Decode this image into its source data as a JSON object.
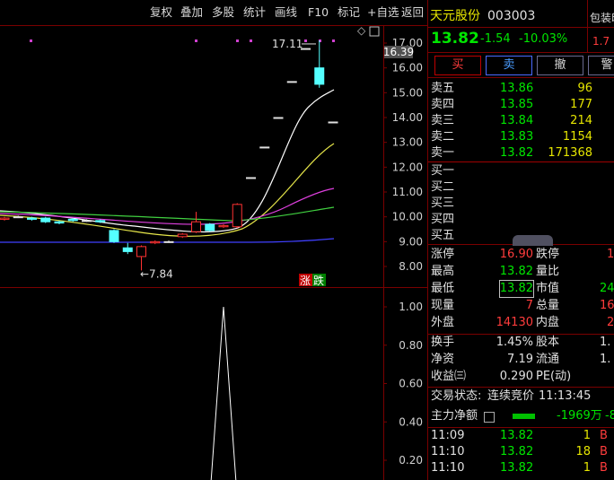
{
  "toolbar": [
    "复权",
    "叠加",
    "多股",
    "统计",
    "画线",
    "F10",
    "标记",
    "+自选",
    "返回"
  ],
  "chart": {
    "price_ticks": [
      {
        "value": 17,
        "label": "17.00"
      },
      {
        "value": 16,
        "label": "16.00"
      },
      {
        "value": 15,
        "label": "15.00"
      },
      {
        "value": 14,
        "label": "14.00"
      },
      {
        "value": 13,
        "label": "13.00"
      },
      {
        "value": 12,
        "label": "12.00"
      },
      {
        "value": 11,
        "label": "11.00"
      },
      {
        "value": 10,
        "label": "10.00"
      },
      {
        "value": 9,
        "label": "9.00"
      },
      {
        "value": 8,
        "label": "8.00"
      }
    ],
    "candles": [
      {
        "open": 9.9,
        "close": 9.95,
        "high": 10,
        "low": 9.85
      },
      {
        "open": 10,
        "close": 10,
        "high": 10.05,
        "low": 9.95
      },
      {
        "open": 9.95,
        "close": 9.9,
        "high": 10,
        "low": 9.85
      },
      {
        "open": 9.95,
        "close": 9.8,
        "high": 10,
        "low": 9.75
      },
      {
        "open": 9.8,
        "close": 9.75,
        "high": 9.85,
        "low": 9.7
      },
      {
        "open": 9.9,
        "close": 9.85,
        "high": 9.95,
        "low": 9.8
      },
      {
        "open": 9.85,
        "close": 9.85,
        "high": 9.9,
        "low": 9.8
      },
      {
        "open": 9.85,
        "close": 9.8,
        "high": 9.9,
        "low": 9.75
      },
      {
        "open": 9.45,
        "close": 9,
        "high": 9.5,
        "low": 8.95
      },
      {
        "open": 8.75,
        "close": 8.6,
        "high": 8.95,
        "low": 8.5
      },
      {
        "open": 8.4,
        "close": 8.8,
        "high": 8.85,
        "low": 7.84
      },
      {
        "open": 8.95,
        "close": 9,
        "high": 9.05,
        "low": 8.9
      },
      {
        "open": 9,
        "close": 9,
        "high": 9.05,
        "low": 8.95
      },
      {
        "open": 9.2,
        "close": 9.3,
        "high": 9.35,
        "low": 9.15
      },
      {
        "open": 9.4,
        "close": 9.8,
        "high": 10.2,
        "low": 9.35
      },
      {
        "open": 9.7,
        "close": 9.45,
        "high": 9.75,
        "low": 9.4
      },
      {
        "open": 9.6,
        "close": 9.65,
        "high": 9.7,
        "low": 9.55
      },
      {
        "open": 9.6,
        "close": 10.5,
        "high": 10.55,
        "low": 9.55
      },
      {
        "open": 11.58,
        "close": 11.58,
        "high": 11.58,
        "low": 11.58
      },
      {
        "open": 12.81,
        "close": 12.81,
        "high": 12.81,
        "low": 12.81
      },
      {
        "open": 14,
        "close": 14,
        "high": 14,
        "low": 14
      },
      {
        "open": 15.45,
        "close": 15.45,
        "high": 15.45,
        "low": 15.45
      },
      {
        "open": 16.78,
        "close": 16.78,
        "high": 16.78,
        "low": 16.78
      },
      {
        "open": 16,
        "close": 15.34,
        "high": 17.11,
        "low": 15.2
      },
      {
        "open": 13.82,
        "close": 13.82,
        "high": 13.82,
        "low": 13.82
      }
    ],
    "high_label": "17.11",
    "low_label": "←7.84",
    "cursor_price": "16.39",
    "updown": [
      "涨",
      "跌"
    ],
    "indicator_ticks": [
      {
        "value": 1,
        "label": "1.00"
      },
      {
        "value": 0.8,
        "label": "0.80"
      },
      {
        "value": 0.6,
        "label": "0.60"
      },
      {
        "value": 0.4,
        "label": "0.40"
      },
      {
        "value": 0.2,
        "label": "0.20"
      }
    ],
    "indicator_values": [
      0,
      0,
      0,
      0,
      0,
      0,
      0,
      0,
      0,
      0,
      0,
      0,
      0,
      0,
      0,
      0,
      1,
      0,
      0,
      0,
      0,
      0,
      0,
      0,
      0
    ]
  },
  "quote": {
    "name": "天元股份",
    "code": "003003",
    "price": "13.82",
    "change": "-1.54",
    "pct": "-10.03%",
    "sector": "包装印",
    "sector_value": "1.7",
    "buttons": [
      "买",
      "卖",
      "撤",
      "警"
    ],
    "asks": [
      [
        "卖五",
        "13.86",
        "96"
      ],
      [
        "卖四",
        "13.85",
        "177"
      ],
      [
        "卖三",
        "13.84",
        "214"
      ],
      [
        "卖二",
        "13.83",
        "1154"
      ],
      [
        "卖一",
        "13.82",
        "171368"
      ]
    ],
    "bids": [
      "买一",
      "买二",
      "买三",
      "买四",
      "买五"
    ],
    "stats": [
      [
        "涨停",
        "16.90",
        "跌停",
        "1"
      ],
      [
        "最高",
        "13.82",
        "量比"
      ],
      [
        "最低",
        "13.82",
        "市值",
        "24"
      ],
      [
        "现量",
        "7",
        "总量",
        "16"
      ],
      [
        "外盘",
        "14130",
        "内盘",
        "2"
      ]
    ],
    "stats2": [
      [
        "换手",
        "1.45%",
        "股本",
        "1."
      ],
      [
        "净资",
        "7.19",
        "流通",
        "1."
      ],
      [
        "收益㈢",
        "0.290",
        "PE(动)"
      ]
    ],
    "status_label": "交易状态:",
    "status": "连续竞价",
    "time": "11:13:45",
    "flow_label": "主力净额",
    "flow": "-1969万",
    "flow2": "-8",
    "trades": [
      [
        "11:09",
        "13.82",
        "1",
        "B"
      ],
      [
        "11:10",
        "13.82",
        "18",
        "B"
      ],
      [
        "11:10",
        "13.82",
        "1",
        "B"
      ]
    ]
  }
}
